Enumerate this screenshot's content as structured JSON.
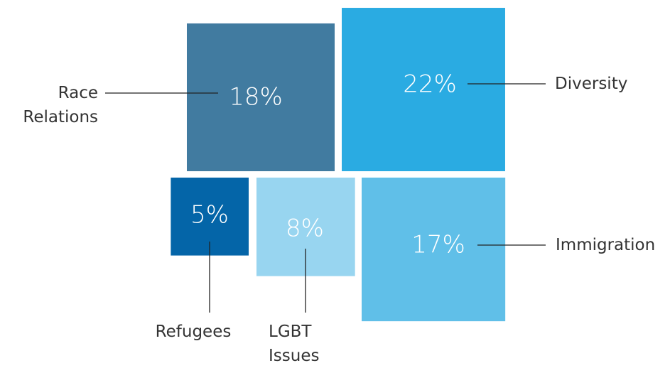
{
  "chart_data": {
    "type": "square",
    "categories": [
      "Race Relations",
      "Diversity",
      "Refugees",
      "LGBT Issues",
      "Immigration"
    ],
    "values": [
      18,
      22,
      5,
      8,
      17
    ],
    "value_labels": [
      "18%",
      "22%",
      "5%",
      "8%",
      "17%"
    ],
    "colors": [
      "#417ba0",
      "#2aabe2",
      "#0465a8",
      "#98d5f0",
      "#60bfe8"
    ]
  }
}
